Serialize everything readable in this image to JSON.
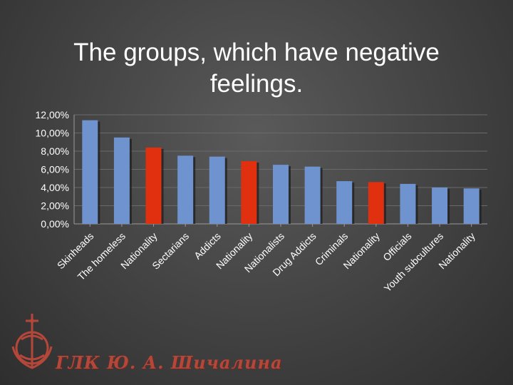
{
  "title_line1": "The groups, which have negative",
  "title_line2": "feelings.",
  "logo_text": "ГЛК Ю. А. Шичалина",
  "chart_data": {
    "type": "bar",
    "title": "The groups, which have negative feelings.",
    "categories": [
      "Skinheads",
      "The homeless",
      "Nationality",
      "Sectarians",
      "Addicts",
      "Nationality",
      "Nationalists",
      "Drug Addicts",
      "Criminals",
      "Nationality",
      "Officials",
      "Youth subcultures",
      "Nationality"
    ],
    "values": [
      11.4,
      9.5,
      8.4,
      7.5,
      7.4,
      6.9,
      6.5,
      6.3,
      4.7,
      4.6,
      4.4,
      4.0,
      3.9
    ],
    "bar_colors": [
      "#6f93cf",
      "#6f93cf",
      "#e03010",
      "#6f93cf",
      "#6f93cf",
      "#e03010",
      "#6f93cf",
      "#6f93cf",
      "#6f93cf",
      "#e03010",
      "#6f93cf",
      "#6f93cf",
      "#6f93cf"
    ],
    "yticks": [
      "0,00%",
      "2,00%",
      "4,00%",
      "6,00%",
      "8,00%",
      "10,00%",
      "12,00%"
    ],
    "ylim": [
      0,
      12
    ],
    "grid": true,
    "xlabel": "",
    "ylabel": ""
  }
}
